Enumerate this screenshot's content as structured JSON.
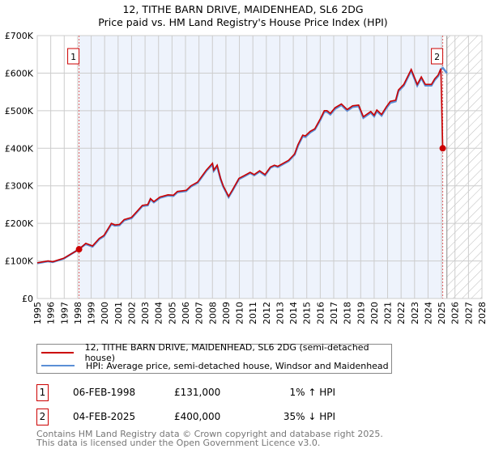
{
  "title": "12, TITHE BARN DRIVE, MAIDENHEAD, SL6 2DG",
  "subtitle": "Price paid vs. HM Land Registry's House Price Index (HPI)",
  "colors": {
    "price": "#cc0000",
    "hpi": "#5b8fd6",
    "shade": "#eef3fc",
    "grid": "#cccccc"
  },
  "chart_data": {
    "type": "line",
    "title": "12, TITHE BARN DRIVE, MAIDENHEAD, SL6 2DG",
    "subtitle": "Price paid vs. HM Land Registry's House Price Index (HPI)",
    "xlim": [
      1995,
      2028
    ],
    "ylim": [
      0,
      700000
    ],
    "y_ticks": [
      {
        "v": 0,
        "label": "£0"
      },
      {
        "v": 100000,
        "label": "£100K"
      },
      {
        "v": 200000,
        "label": "£200K"
      },
      {
        "v": 300000,
        "label": "£300K"
      },
      {
        "v": 400000,
        "label": "£400K"
      },
      {
        "v": 500000,
        "label": "£500K"
      },
      {
        "v": 600000,
        "label": "£600K"
      },
      {
        "v": 700000,
        "label": "£700K"
      }
    ],
    "x_ticks": [
      "1995",
      "1996",
      "1997",
      "1998",
      "1999",
      "2000",
      "2001",
      "2002",
      "2003",
      "2004",
      "2005",
      "2006",
      "2007",
      "2008",
      "2009",
      "2010",
      "2011",
      "2012",
      "2013",
      "2014",
      "2015",
      "2016",
      "2017",
      "2018",
      "2019",
      "2020",
      "2021",
      "2022",
      "2023",
      "2024",
      "2025",
      "2026",
      "2027",
      "2028"
    ],
    "grid": true,
    "forecast_hatch_from": 2025.4,
    "ownership_shade": [
      1998.1,
      2025.09
    ],
    "series": [
      {
        "name": "HPI: Average price, semi-detached house, Windsor and Maidenhead",
        "color": "#5b8fd6",
        "points": [
          [
            1995.0,
            94
          ],
          [
            1995.8,
            99
          ],
          [
            1996.15,
            97
          ],
          [
            1996.96,
            106
          ],
          [
            1998.0,
            129
          ],
          [
            1998.6,
            145
          ],
          [
            1999.1,
            138
          ],
          [
            1999.6,
            158
          ],
          [
            1999.95,
            166
          ],
          [
            2000.5,
            198
          ],
          [
            2000.76,
            194
          ],
          [
            2001.1,
            195
          ],
          [
            2001.45,
            208
          ],
          [
            2002.0,
            214
          ],
          [
            2002.4,
            230
          ],
          [
            2002.8,
            246
          ],
          [
            2003.2,
            248
          ],
          [
            2003.4,
            264
          ],
          [
            2003.65,
            256
          ],
          [
            2004.1,
            268
          ],
          [
            2004.7,
            274
          ],
          [
            2005.1,
            273
          ],
          [
            2005.4,
            283
          ],
          [
            2006.05,
            286
          ],
          [
            2006.4,
            298
          ],
          [
            2006.9,
            308
          ],
          [
            2007.55,
            340
          ],
          [
            2008.0,
            357
          ],
          [
            2008.1,
            340
          ],
          [
            2008.35,
            352
          ],
          [
            2008.6,
            318
          ],
          [
            2008.8,
            298
          ],
          [
            2009.2,
            270
          ],
          [
            2009.5,
            288
          ],
          [
            2009.97,
            318
          ],
          [
            2010.4,
            326
          ],
          [
            2010.8,
            334
          ],
          [
            2011.1,
            328
          ],
          [
            2011.5,
            338
          ],
          [
            2011.9,
            328
          ],
          [
            2012.3,
            348
          ],
          [
            2012.6,
            353
          ],
          [
            2012.85,
            350
          ],
          [
            2013.65,
            366
          ],
          [
            2014.1,
            383
          ],
          [
            2014.35,
            407
          ],
          [
            2014.7,
            432
          ],
          [
            2014.9,
            430
          ],
          [
            2015.25,
            442
          ],
          [
            2015.6,
            450
          ],
          [
            2016.0,
            475
          ],
          [
            2016.3,
            497
          ],
          [
            2016.5,
            497
          ],
          [
            2016.75,
            490
          ],
          [
            2017.1,
            505
          ],
          [
            2017.57,
            515
          ],
          [
            2018.0,
            500
          ],
          [
            2018.4,
            510
          ],
          [
            2018.85,
            512
          ],
          [
            2019.2,
            481
          ],
          [
            2019.75,
            495
          ],
          [
            2020.0,
            485
          ],
          [
            2020.2,
            499
          ],
          [
            2020.55,
            487
          ],
          [
            2020.9,
            507
          ],
          [
            2021.2,
            521
          ],
          [
            2021.6,
            525
          ],
          [
            2021.8,
            552
          ],
          [
            2022.2,
            567
          ],
          [
            2022.75,
            607
          ],
          [
            2023.2,
            567
          ],
          [
            2023.5,
            587
          ],
          [
            2023.8,
            567
          ],
          [
            2024.25,
            567
          ],
          [
            2024.5,
            582
          ],
          [
            2024.75,
            592
          ],
          [
            2024.95,
            610
          ],
          [
            2025.1,
            614
          ],
          [
            2025.4,
            600
          ]
        ]
      },
      {
        "name": "12, TITHE BARN DRIVE, MAIDENHEAD, SL6 2DG (semi-detached house)",
        "color": "#cc0000",
        "points": [
          [
            1995.0,
            95
          ],
          [
            1995.8,
            100
          ],
          [
            1996.15,
            98
          ],
          [
            1996.96,
            107
          ],
          [
            1998.1,
            131
          ],
          [
            1998.6,
            147
          ],
          [
            1999.1,
            140
          ],
          [
            1999.6,
            160
          ],
          [
            1999.95,
            168
          ],
          [
            2000.5,
            200
          ],
          [
            2000.76,
            196
          ],
          [
            2001.1,
            197
          ],
          [
            2001.45,
            210
          ],
          [
            2002.0,
            216
          ],
          [
            2002.4,
            232
          ],
          [
            2002.8,
            248
          ],
          [
            2003.2,
            250
          ],
          [
            2003.4,
            266
          ],
          [
            2003.65,
            258
          ],
          [
            2004.1,
            270
          ],
          [
            2004.7,
            276
          ],
          [
            2005.1,
            275
          ],
          [
            2005.4,
            285
          ],
          [
            2006.05,
            288
          ],
          [
            2006.4,
            300
          ],
          [
            2006.9,
            310
          ],
          [
            2007.55,
            342
          ],
          [
            2008.0,
            360
          ],
          [
            2008.1,
            342
          ],
          [
            2008.35,
            355
          ],
          [
            2008.6,
            320
          ],
          [
            2008.8,
            300
          ],
          [
            2009.2,
            272
          ],
          [
            2009.5,
            290
          ],
          [
            2009.97,
            320
          ],
          [
            2010.4,
            328
          ],
          [
            2010.8,
            336
          ],
          [
            2011.1,
            330
          ],
          [
            2011.5,
            340
          ],
          [
            2011.9,
            330
          ],
          [
            2012.3,
            350
          ],
          [
            2012.6,
            355
          ],
          [
            2012.85,
            352
          ],
          [
            2013.65,
            368
          ],
          [
            2014.1,
            385
          ],
          [
            2014.35,
            410
          ],
          [
            2014.7,
            435
          ],
          [
            2014.9,
            433
          ],
          [
            2015.25,
            445
          ],
          [
            2015.6,
            452
          ],
          [
            2016.0,
            478
          ],
          [
            2016.3,
            500
          ],
          [
            2016.5,
            500
          ],
          [
            2016.75,
            493
          ],
          [
            2017.1,
            508
          ],
          [
            2017.57,
            518
          ],
          [
            2018.0,
            503
          ],
          [
            2018.4,
            513
          ],
          [
            2018.85,
            515
          ],
          [
            2019.2,
            484
          ],
          [
            2019.75,
            498
          ],
          [
            2020.0,
            488
          ],
          [
            2020.2,
            502
          ],
          [
            2020.55,
            490
          ],
          [
            2020.9,
            510
          ],
          [
            2021.2,
            525
          ],
          [
            2021.6,
            528
          ],
          [
            2021.8,
            555
          ],
          [
            2022.2,
            570
          ],
          [
            2022.75,
            610
          ],
          [
            2023.2,
            570
          ],
          [
            2023.5,
            590
          ],
          [
            2023.8,
            570
          ],
          [
            2024.25,
            570
          ],
          [
            2024.5,
            585
          ],
          [
            2024.75,
            595
          ],
          [
            2024.95,
            612
          ],
          [
            2025.09,
            400
          ]
        ]
      }
    ],
    "sales": [
      {
        "id": "1",
        "year": 1998.1,
        "value": 131000
      },
      {
        "id": "2",
        "year": 2025.09,
        "value": 400000
      }
    ],
    "value_units": "thousands GBP in points"
  },
  "legend": [
    {
      "label": "12, TITHE BARN DRIVE, MAIDENHEAD, SL6 2DG (semi-detached house)",
      "color": "#cc0000"
    },
    {
      "label": "HPI: Average price, semi-detached house, Windsor and Maidenhead",
      "color": "#5b8fd6"
    }
  ],
  "transactions": [
    {
      "id": "1",
      "date": "06-FEB-1998",
      "price": "£131,000",
      "hpi": "1% ↑ HPI"
    },
    {
      "id": "2",
      "date": "04-FEB-2025",
      "price": "£400,000",
      "hpi": "35% ↓ HPI"
    }
  ],
  "footer": [
    "Contains HM Land Registry data © Crown copyright and database right 2025.",
    "This data is licensed under the Open Government Licence v3.0."
  ]
}
